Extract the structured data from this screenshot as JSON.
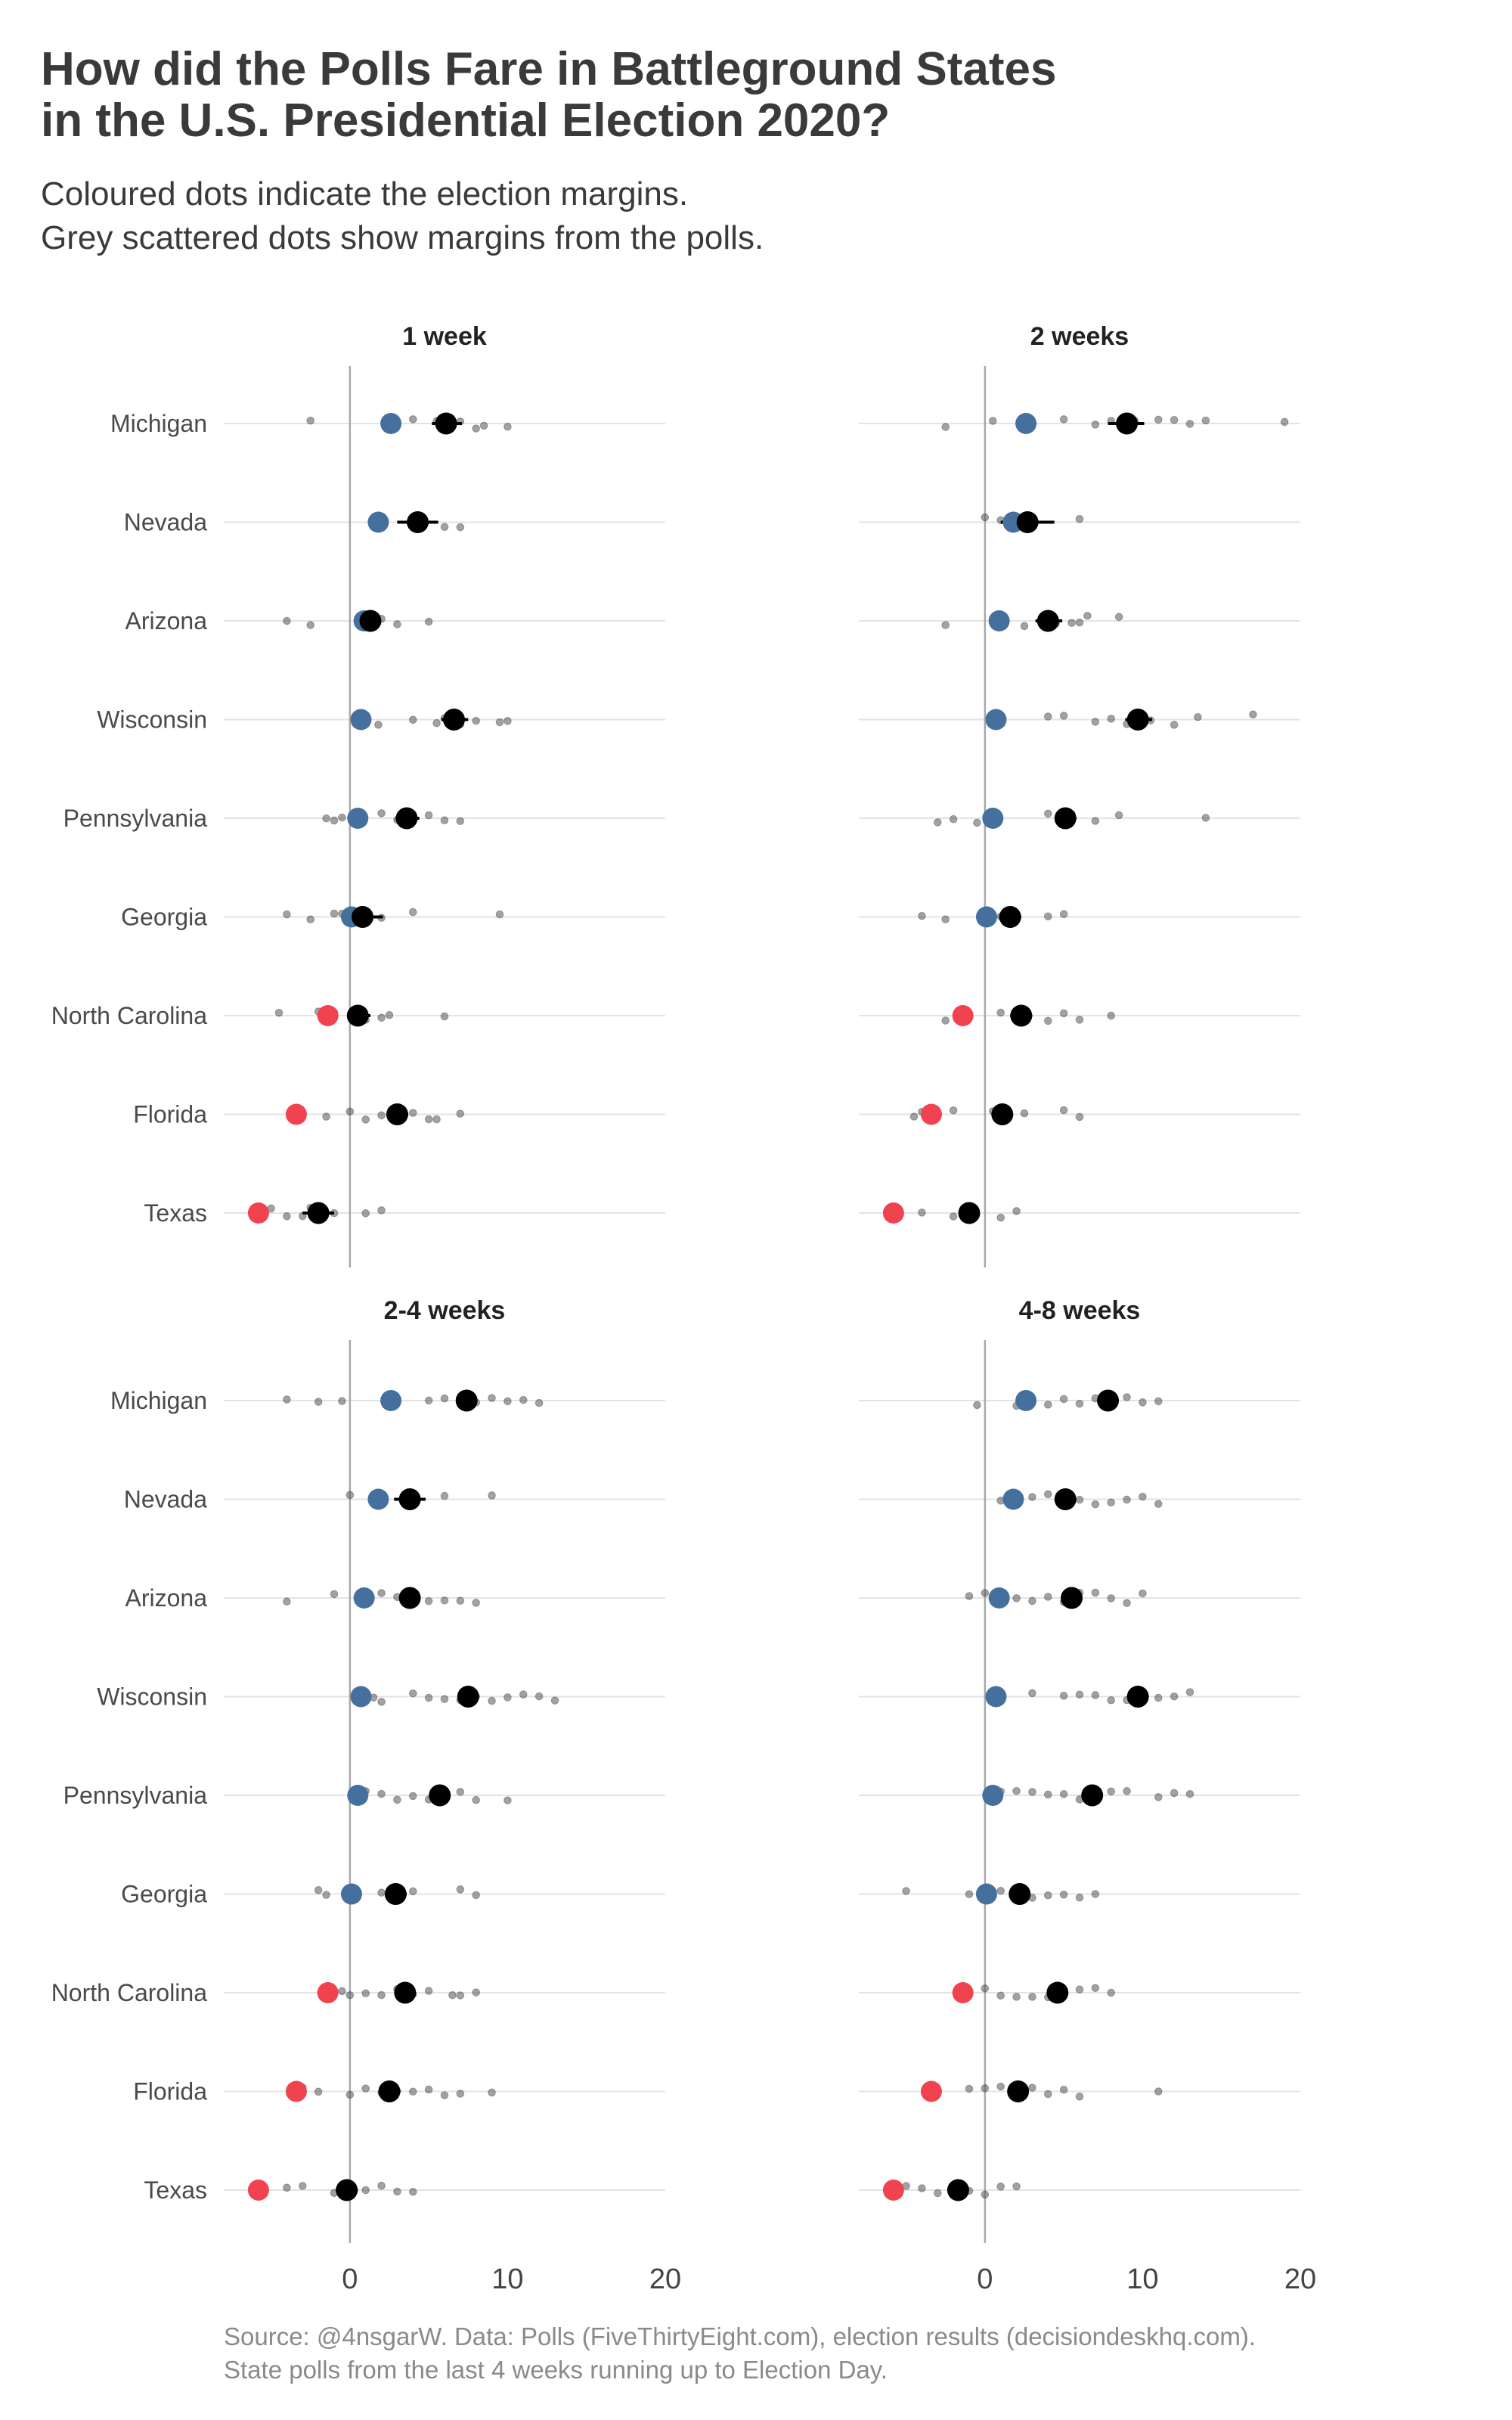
{
  "title_lines": [
    "How did the Polls Fare in Battleground States",
    "in the U.S. Presidential Election 2020?"
  ],
  "subtitle_lines": [
    "Coloured dots indicate the election margins.",
    "Grey scattered dots show margins from the polls."
  ],
  "caption_lines": [
    "Source: @4nsgarW. Data: Polls (FiveThirtyEight.com), election results (decisiondeskhq.com).",
    "State polls from the last 4 weeks running up to Election Day."
  ],
  "colors": {
    "dem": "#45709e",
    "rep": "#f0434f",
    "avg": "#000000",
    "poll": "#555555",
    "grid": "#e3e3e3",
    "zero": "#a9a9a9"
  },
  "chart_data": {
    "type": "scatter",
    "xlim": [
      -8,
      20
    ],
    "xticks": [
      0,
      10,
      20
    ],
    "xtick_labels": [
      "0",
      "10",
      "20"
    ],
    "grid": true,
    "states": [
      "Michigan",
      "Nevada",
      "Arizona",
      "Wisconsin",
      "Pennsylvania",
      "Georgia",
      "North Carolina",
      "Florida",
      "Texas"
    ],
    "results": [
      2.6,
      1.8,
      0.9,
      0.7,
      0.5,
      0.1,
      -1.4,
      -3.4,
      -5.8
    ],
    "panels": [
      {
        "label": "1 week",
        "averages": [
          6.1,
          4.3,
          1.3,
          6.6,
          3.6,
          0.8,
          0.5,
          3.0,
          -2.0
        ],
        "ci": [
          [
            5.2,
            7.1
          ],
          [
            3.0,
            5.6
          ],
          [
            1.0,
            1.7
          ],
          [
            5.8,
            7.5
          ],
          [
            2.9,
            4.4
          ],
          [
            0.2,
            2.1
          ],
          [
            -0.1,
            1.3
          ],
          [
            2.5,
            3.7
          ],
          [
            -3.0,
            -1.0
          ]
        ],
        "polls": [
          [
            -2.5,
            4.0,
            5.5,
            6.0,
            6.5,
            7.0,
            8.0,
            8.5,
            10.0
          ],
          [
            1.5,
            2.0,
            6.0,
            7.0
          ],
          [
            -4.0,
            -2.5,
            1.5,
            2.0,
            3.0,
            5.0
          ],
          [
            1.8,
            4.0,
            5.5,
            6.0,
            7.0,
            8.0,
            9.5,
            10.0
          ],
          [
            -1.5,
            -1.0,
            -0.5,
            2.0,
            3.0,
            4.0,
            5.0,
            6.0,
            7.0
          ],
          [
            -4.0,
            -2.5,
            -1.0,
            -0.5,
            1.0,
            2.0,
            4.0,
            9.5
          ],
          [
            -4.5,
            -2.0,
            -1.5,
            -1.0,
            1.0,
            2.0,
            2.5,
            6.0
          ],
          [
            -1.5,
            0.0,
            1.0,
            2.0,
            3.0,
            4.0,
            5.0,
            5.5,
            7.0
          ],
          [
            -5.0,
            -4.0,
            -3.0,
            -2.5,
            -1.0,
            1.0,
            2.0
          ]
        ]
      },
      {
        "label": "2 weeks",
        "averages": [
          9.0,
          2.7,
          4.0,
          9.7,
          5.1,
          1.6,
          2.3,
          1.1,
          -1.0
        ],
        "ci": [
          [
            7.8,
            10.1
          ],
          [
            1.0,
            4.4
          ],
          [
            3.2,
            4.9
          ],
          [
            8.9,
            10.6
          ],
          [
            4.5,
            5.8
          ],
          [
            0.9,
            2.3
          ],
          [
            1.6,
            3.0
          ],
          [
            0.6,
            1.6
          ],
          [
            -1.6,
            -0.4
          ]
        ],
        "polls": [
          [
            -2.5,
            0.5,
            5.0,
            7.0,
            8.0,
            9.5,
            11.0,
            12.0,
            13.0,
            14.0,
            19.0
          ],
          [
            0.0,
            1.0,
            6.0
          ],
          [
            -2.5,
            2.5,
            4.5,
            5.5,
            6.0,
            6.5,
            8.5
          ],
          [
            4.0,
            5.0,
            7.0,
            8.0,
            9.0,
            10.5,
            12.0,
            13.5,
            17.0
          ],
          [
            -3.0,
            -2.0,
            -0.5,
            4.0,
            5.0,
            5.5,
            7.0,
            8.5,
            14.0
          ],
          [
            -4.0,
            -2.5,
            1.0,
            2.0,
            4.0,
            5.0
          ],
          [
            -2.5,
            -1.0,
            1.0,
            2.0,
            4.0,
            5.0,
            6.0,
            8.0
          ],
          [
            -4.5,
            -4.0,
            -2.0,
            0.5,
            1.5,
            2.5,
            5.0,
            6.0
          ],
          [
            -4.0,
            -2.0,
            -1.0,
            1.0,
            2.0
          ]
        ]
      },
      {
        "label": "2-4 weeks",
        "averages": [
          7.4,
          3.8,
          3.8,
          7.5,
          5.7,
          2.9,
          3.5,
          2.5,
          -0.2
        ],
        "ci": [
          [
            6.8,
            8.0
          ],
          [
            2.8,
            4.8
          ],
          [
            3.2,
            4.4
          ],
          [
            7.0,
            8.0
          ],
          [
            5.1,
            6.3
          ],
          [
            2.3,
            3.6
          ],
          [
            2.9,
            4.1
          ],
          [
            1.9,
            3.1
          ],
          [
            -0.9,
            0.5
          ]
        ],
        "polls": [
          [
            -4.0,
            -2.0,
            -0.5,
            5.0,
            6.0,
            7.0,
            8.0,
            9.0,
            10.0,
            11.0,
            12.0
          ],
          [
            0.0,
            2.0,
            6.0,
            9.0
          ],
          [
            -4.0,
            -1.0,
            1.0,
            2.0,
            3.0,
            4.0,
            5.0,
            6.0,
            7.0,
            8.0
          ],
          [
            1.5,
            2.0,
            4.0,
            5.0,
            6.0,
            7.0,
            8.0,
            9.0,
            10.0,
            11.0,
            12.0,
            13.0
          ],
          [
            1.0,
            2.0,
            3.0,
            4.0,
            5.0,
            6.0,
            7.0,
            8.0,
            10.0
          ],
          [
            -2.0,
            -1.5,
            0.5,
            2.0,
            3.0,
            4.0,
            7.0,
            8.0
          ],
          [
            -0.5,
            0.0,
            1.0,
            2.0,
            3.0,
            4.0,
            5.0,
            6.5,
            7.0,
            8.0
          ],
          [
            -3.0,
            -2.0,
            0.0,
            1.0,
            2.0,
            3.0,
            4.0,
            5.0,
            6.0,
            7.0,
            9.0
          ],
          [
            -4.0,
            -3.0,
            -1.0,
            0.0,
            1.0,
            2.0,
            3.0,
            4.0
          ]
        ]
      },
      {
        "label": "4-8 weeks",
        "averages": [
          7.8,
          5.1,
          5.5,
          9.7,
          6.8,
          2.2,
          4.6,
          2.1,
          -1.7
        ],
        "ci": [
          [
            7.4,
            8.2
          ],
          [
            4.7,
            5.5
          ],
          [
            5.1,
            5.9
          ],
          [
            9.3,
            10.1
          ],
          [
            6.4,
            7.2
          ],
          [
            1.8,
            2.6
          ],
          [
            4.2,
            5.0
          ],
          [
            1.7,
            2.5
          ],
          [
            -2.1,
            -1.3
          ]
        ],
        "polls": [
          [
            -0.5,
            2.0,
            4.0,
            5.0,
            6.0,
            7.0,
            8.0,
            9.0,
            10.0,
            11.0
          ],
          [
            1.0,
            2.0,
            3.0,
            4.0,
            5.0,
            6.0,
            7.0,
            8.0,
            9.0,
            10.0,
            11.0
          ],
          [
            -1.0,
            0.0,
            1.0,
            2.0,
            3.0,
            4.0,
            5.0,
            6.0,
            7.0,
            8.0,
            9.0,
            10.0
          ],
          [
            1.0,
            3.0,
            5.0,
            6.0,
            7.0,
            8.0,
            9.0,
            10.0,
            11.0,
            12.0,
            13.0
          ],
          [
            1.0,
            2.0,
            3.0,
            4.0,
            5.0,
            6.0,
            7.0,
            8.0,
            9.0,
            11.0,
            12.0,
            13.0
          ],
          [
            -5.0,
            -1.0,
            0.0,
            1.0,
            2.0,
            3.0,
            4.0,
            5.0,
            6.0,
            7.0
          ],
          [
            -1.5,
            0.0,
            1.0,
            2.0,
            3.0,
            4.0,
            5.0,
            6.0,
            7.0,
            8.0
          ],
          [
            -1.0,
            0.0,
            1.0,
            2.0,
            3.0,
            4.0,
            5.0,
            6.0,
            11.0
          ],
          [
            -6.0,
            -5.0,
            -4.0,
            -3.0,
            -2.0,
            -1.0,
            0.0,
            1.0,
            2.0
          ]
        ]
      }
    ]
  }
}
